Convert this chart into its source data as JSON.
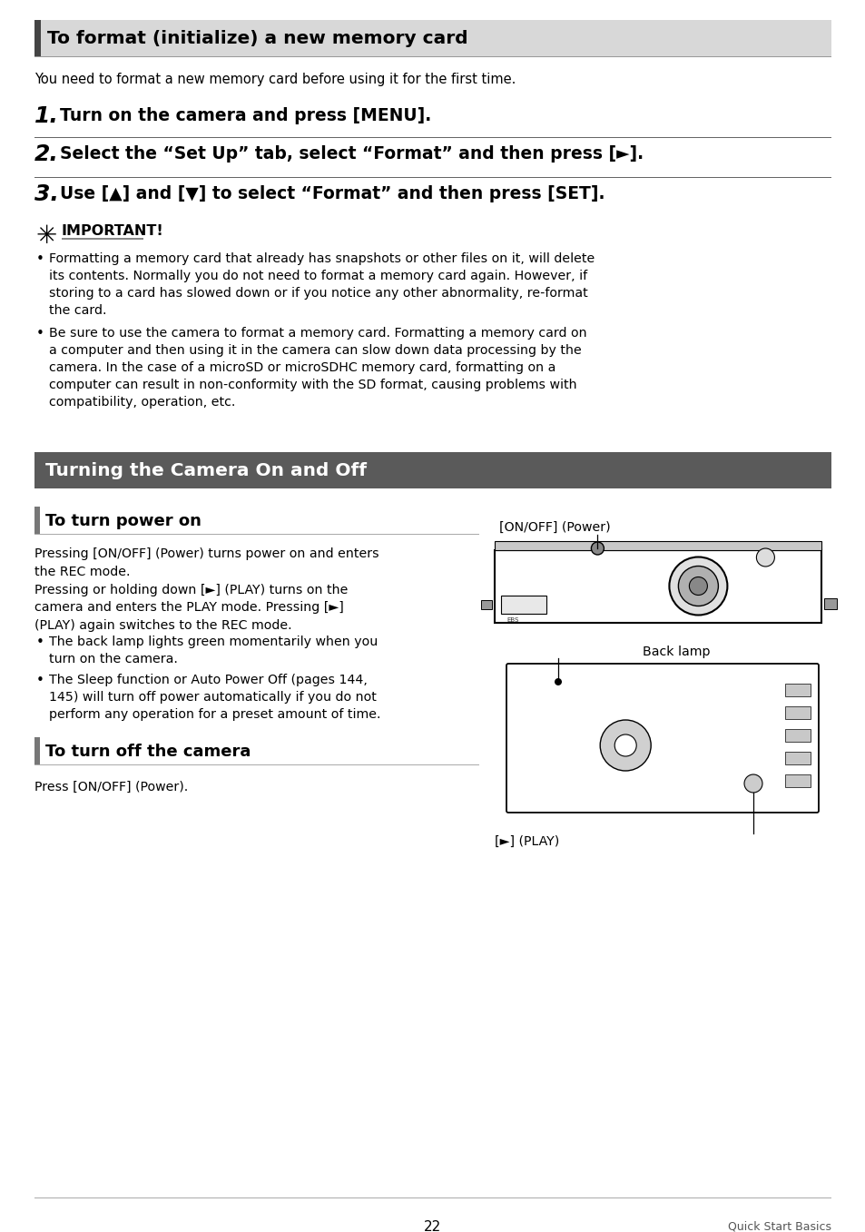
{
  "bg_color": "#ffffff",
  "section1_title": "To format (initialize) a new memory card",
  "section1_intro": "You need to format a new memory card before using it for the first time.",
  "step1": "Turn on the camera and press [MENU].",
  "step2": "Select the “Set Up” tab, select “Format” and then press [►].",
  "step3": "Use [▲] and [▼] to select “Format” and then press [SET].",
  "important_label": "IMPORTANT!",
  "bullet1": "Formatting a memory card that already has snapshots or other files on it, will delete\nits contents. Normally you do not need to format a memory card again. However, if\nstoring to a card has slowed down or if you notice any other abnormality, re-format\nthe card.",
  "bullet2": "Be sure to use the camera to format a memory card. Formatting a memory card on\na computer and then using it in the camera can slow down data processing by the\ncamera. In the case of a microSD or microSDHC memory card, formatting on a\ncomputer can result in non-conformity with the SD format, causing problems with\ncompatibility, operation, etc.",
  "section2_title": "Turning the Camera On and Off",
  "section2_bg": "#5a5a5a",
  "section2_text_color": "#ffffff",
  "subsection1_title": "To turn power on",
  "power_text1": "Pressing [ON/OFF] (Power) turns power on and enters\nthe REC mode.",
  "power_text2": "Pressing or holding down [►] (PLAY) turns on the\ncamera and enters the PLAY mode. Pressing [►]\n(PLAY) again switches to the REC mode.",
  "bullet3": "The back lamp lights green momentarily when you\nturn on the camera.",
  "bullet4": "The Sleep function or Auto Power Off (pages 144,\n145) will turn off power automatically if you do not\nperform any operation for a preset amount of time.",
  "label_power": "[ON/OFF] (Power)",
  "label_backlamp": "Back lamp",
  "label_play": "[►] (PLAY)",
  "subsection2_title": "To turn off the camera",
  "turn_off_text": "Press [ON/OFF] (Power).",
  "footer_page": "22",
  "footer_right": "Quick Start Basics"
}
